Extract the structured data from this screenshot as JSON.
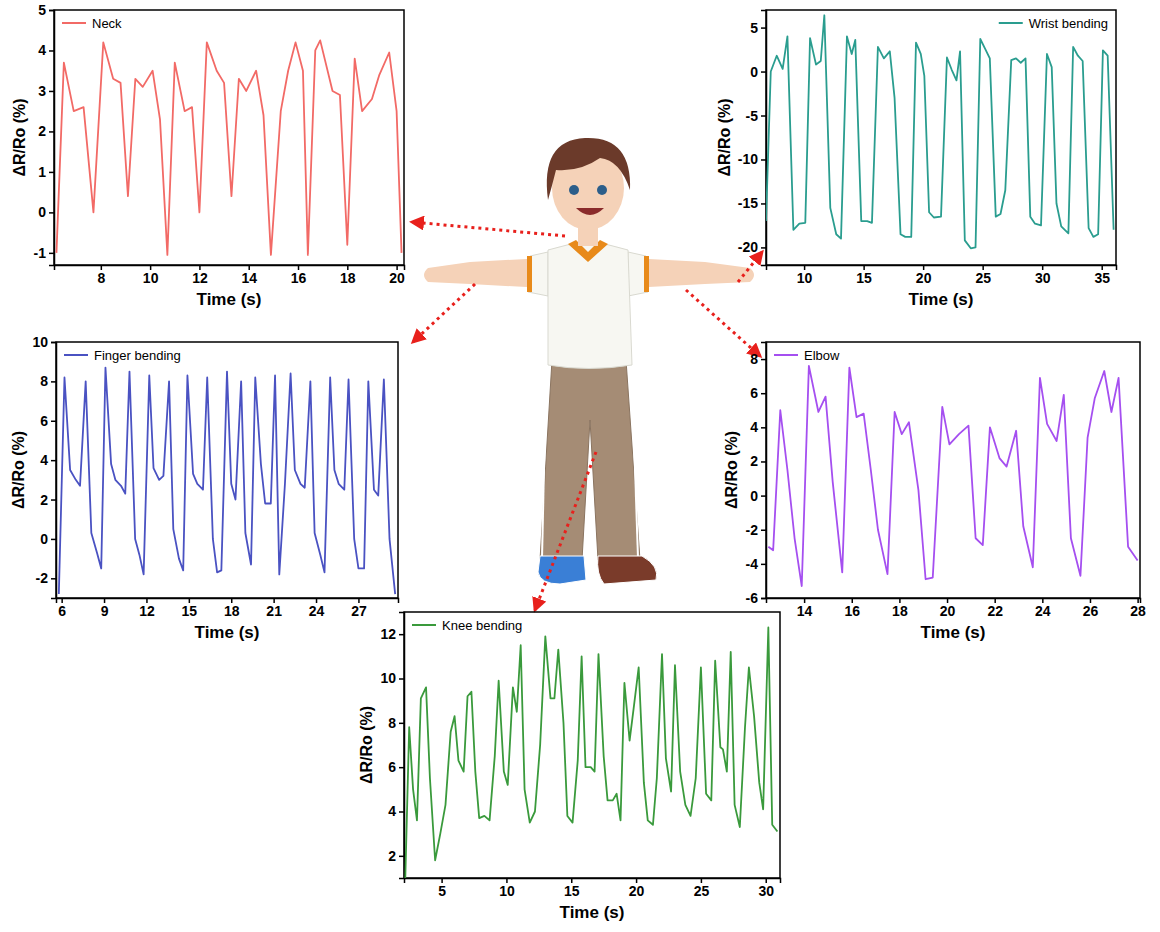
{
  "chart_data": [
    {
      "type": "line",
      "x_label": "Time (s)",
      "y_label": "ΔR/Ro (%)",
      "legend": "upper left",
      "xlim": [
        6.1,
        20.3
      ],
      "xticks": [
        8,
        10,
        12,
        14,
        16,
        18,
        20
      ],
      "ylim": [
        -1.3,
        5
      ],
      "yticks": [
        -1,
        0,
        1,
        2,
        3,
        4,
        5
      ],
      "x": [
        6.2,
        6.5,
        6.9,
        7.3,
        7.7,
        8.1,
        8.5,
        8.8,
        9.1,
        9.4,
        9.7,
        10.1,
        10.4,
        10.7,
        11.0,
        11.4,
        11.7,
        12.0,
        12.3,
        12.7,
        13.0,
        13.3,
        13.6,
        13.9,
        14.3,
        14.6,
        14.9,
        15.3,
        15.6,
        15.9,
        16.2,
        16.4,
        16.7,
        16.9,
        17.4,
        17.7,
        18.0,
        18.3,
        18.6,
        19.0,
        19.3,
        19.7,
        20.0,
        20.2
      ],
      "series": [
        {
          "name": "Neck",
          "color": "#f26a66",
          "values": [
            -1,
            3.7,
            2.5,
            2.6,
            0,
            4.2,
            3.3,
            3.2,
            0.4,
            3.3,
            3.1,
            3.5,
            2.3,
            -1.05,
            3.7,
            2.5,
            2.6,
            0,
            4.2,
            3.5,
            3.2,
            0.4,
            3.3,
            3.0,
            3.5,
            2.4,
            -1.05,
            2.5,
            3.5,
            4.2,
            3.5,
            -1.05,
            4.0,
            4.25,
            3.0,
            2.9,
            -0.8,
            3.8,
            2.5,
            2.8,
            3.4,
            3.95,
            2.5,
            -1
          ]
        }
      ]
    },
    {
      "type": "line",
      "x_label": "Time (s)",
      "y_label": "ΔR/Ro (%)",
      "legend": "upper right",
      "xlim": [
        6.8,
        36.2
      ],
      "xticks": [
        10,
        15,
        20,
        25,
        30,
        35
      ],
      "ylim": [
        -22,
        7
      ],
      "yticks": [
        -20,
        -15,
        -10,
        -5,
        0,
        5
      ],
      "x": [
        6.8,
        7.2,
        7.7,
        8.2,
        8.6,
        9.1,
        9.6,
        10.1,
        10.5,
        11.0,
        11.4,
        11.7,
        12.2,
        12.7,
        13.1,
        13.6,
        14.0,
        14.3,
        14.8,
        15.3,
        15.7,
        16.2,
        16.7,
        17.2,
        17.6,
        18.1,
        18.5,
        19.0,
        19.4,
        19.8,
        20.1,
        20.5,
        20.9,
        21.5,
        22.0,
        22.4,
        22.8,
        23.1,
        23.5,
        24.0,
        24.4,
        24.8,
        25.2,
        25.6,
        26.1,
        26.5,
        26.9,
        27.4,
        27.8,
        28.2,
        28.6,
        29.0,
        29.4,
        29.9,
        30.4,
        30.8,
        31.2,
        31.6,
        32.2,
        32.6,
        33.0,
        33.4,
        33.9,
        34.3,
        34.7,
        35.1,
        35.5,
        36.0
      ],
      "series": [
        {
          "name": "Wrist bending",
          "color": "#2a9d8f",
          "values": [
            -17,
            0,
            1.8,
            0.3,
            4,
            -18,
            -17.3,
            -17.2,
            3.8,
            0.8,
            1.2,
            6.4,
            -15.5,
            -18.5,
            -19,
            4,
            2,
            3.6,
            -17,
            -17,
            -17.2,
            2.8,
            1.5,
            2.3,
            -3,
            -18.5,
            -18.8,
            -18.8,
            3.3,
            2,
            -0.5,
            -16,
            -16.6,
            -16.5,
            1.6,
            0.2,
            -1,
            2.3,
            -19.2,
            -20.1,
            -20,
            3.7,
            2.6,
            1.5,
            -16.5,
            -16.2,
            -13.5,
            1.3,
            1.5,
            1.0,
            1.5,
            -16.5,
            -17.3,
            -17.5,
            2,
            0.5,
            -15,
            -17.6,
            -18.4,
            2.8,
            1.8,
            1.2,
            -17.8,
            -18.8,
            -18.5,
            2.4,
            1.8,
            -18
          ]
        }
      ]
    },
    {
      "type": "line",
      "x_label": "Time (s)",
      "y_label": "ΔR/Ro (%)",
      "legend": "upper left",
      "xlim": [
        5.6,
        29.8
      ],
      "xticks": [
        6,
        9,
        12,
        15,
        18,
        21,
        24,
        27
      ],
      "ylim": [
        -3,
        10
      ],
      "yticks": [
        -2,
        0,
        2,
        4,
        6,
        8,
        10
      ],
      "x": [
        5.8,
        6.2,
        6.6,
        7.0,
        7.3,
        7.7,
        8.1,
        8.5,
        8.8,
        9.1,
        9.5,
        9.8,
        10.2,
        10.5,
        10.8,
        11.2,
        11.5,
        11.8,
        12.2,
        12.5,
        12.9,
        13.2,
        13.6,
        13.9,
        14.3,
        14.6,
        14.9,
        15.3,
        15.6,
        16.0,
        16.3,
        16.7,
        17.0,
        17.3,
        17.7,
        18.0,
        18.3,
        18.7,
        19.0,
        19.4,
        19.7,
        20.1,
        20.4,
        20.8,
        21.1,
        21.4,
        21.8,
        22.2,
        22.5,
        22.9,
        23.2,
        23.6,
        23.9,
        24.3,
        24.6,
        25.0,
        25.3,
        25.6,
        26.0,
        26.3,
        26.7,
        27.0,
        27.4,
        27.7,
        28.1,
        28.4,
        28.8,
        29.2,
        29.6
      ],
      "series": [
        {
          "name": "Finger bending",
          "color": "#4a52c2",
          "values": [
            -2.8,
            8.2,
            3.5,
            3.0,
            2.7,
            8.0,
            0.3,
            -0.7,
            -1.5,
            8.7,
            3.8,
            3.0,
            2.7,
            2.3,
            8.5,
            0,
            -0.8,
            -1.8,
            8.3,
            3.6,
            3.0,
            3.2,
            8.0,
            0.5,
            -1.0,
            -1.6,
            8.3,
            3.3,
            2.8,
            2.5,
            8.2,
            0,
            -1.7,
            -1.6,
            8.5,
            2.8,
            2.0,
            8.0,
            0.3,
            -1.3,
            8.2,
            3.8,
            1.8,
            1.8,
            8.3,
            -1.8,
            2.8,
            8.4,
            3.5,
            2.8,
            2.6,
            8.0,
            0.3,
            -0.8,
            -1.7,
            8.2,
            3.5,
            2.8,
            2.5,
            8.1,
            0,
            -1.5,
            -1.5,
            8.0,
            2.5,
            2.2,
            8.1,
            0,
            -2.8
          ]
        }
      ]
    },
    {
      "type": "line",
      "x_label": "Time (s)",
      "y_label": "ΔR/Ro (%)",
      "legend": "upper left",
      "xlim": [
        12.4,
        28.1
      ],
      "xticks": [
        14,
        16,
        18,
        20,
        22,
        24,
        26,
        28
      ],
      "ylim": [
        -6,
        9
      ],
      "yticks": [
        -6,
        -4,
        -2,
        0,
        2,
        4,
        6,
        8
      ],
      "x": [
        12.5,
        12.7,
        13.0,
        13.3,
        13.6,
        13.9,
        14.2,
        14.6,
        14.9,
        15.2,
        15.6,
        15.9,
        16.2,
        16.5,
        16.8,
        17.1,
        17.5,
        17.8,
        18.1,
        18.4,
        18.8,
        19.1,
        19.4,
        19.8,
        20.1,
        20.5,
        20.9,
        21.2,
        21.5,
        21.8,
        22.2,
        22.5,
        22.9,
        23.2,
        23.6,
        23.9,
        24.2,
        24.6,
        24.9,
        25.2,
        25.6,
        25.9,
        26.2,
        26.6,
        26.9,
        27.2,
        27.6,
        28.0
      ],
      "series": [
        {
          "name": "Elbow",
          "color": "#a54ff0",
          "values": [
            -3,
            -3.2,
            5,
            1.5,
            -2.5,
            -5.3,
            7.6,
            4.9,
            5.8,
            0.8,
            -4.5,
            7.5,
            4.6,
            4.8,
            1.5,
            -2,
            -4.6,
            4.9,
            3.6,
            4.3,
            0.3,
            -4.9,
            -4.8,
            5.2,
            3,
            3.6,
            4.1,
            -2.5,
            -2.9,
            4,
            2.2,
            1.7,
            3.8,
            -1.8,
            -4.2,
            6.9,
            4.2,
            3.2,
            5.9,
            -2.5,
            -4.7,
            3.4,
            5.7,
            7.3,
            4.9,
            6.9,
            -3,
            -3.8
          ]
        }
      ]
    },
    {
      "type": "line",
      "x_label": "Time (s)",
      "y_label": "ΔR/Ro (%)",
      "legend": "upper left",
      "xlim": [
        2.1,
        31.1
      ],
      "xticks": [
        5,
        10,
        15,
        20,
        25,
        30
      ],
      "ylim": [
        1,
        13
      ],
      "yticks": [
        2,
        4,
        6,
        8,
        10,
        12
      ],
      "x": [
        2.2,
        2.5,
        2.8,
        3.1,
        3.4,
        3.8,
        4.1,
        4.5,
        4.9,
        5.3,
        5.7,
        6.0,
        6.3,
        6.7,
        7.0,
        7.3,
        7.6,
        7.9,
        8.3,
        8.7,
        9.1,
        9.4,
        9.8,
        10.1,
        10.5,
        10.8,
        11.1,
        11.4,
        11.8,
        12.2,
        12.6,
        13.0,
        13.4,
        13.7,
        14.0,
        14.4,
        14.7,
        15.1,
        15.5,
        15.8,
        16.1,
        16.5,
        16.8,
        17.1,
        17.5,
        17.8,
        18.2,
        18.5,
        18.8,
        19.1,
        19.5,
        19.8,
        20.2,
        20.6,
        20.9,
        21.3,
        21.6,
        22.0,
        22.3,
        22.7,
        23.0,
        23.4,
        23.8,
        24.2,
        24.6,
        25.0,
        25.4,
        25.8,
        26.1,
        26.5,
        26.7,
        27.0,
        27.3,
        27.6,
        28.0,
        28.4,
        28.7,
        29.1,
        29.5,
        29.8,
        30.2,
        30.5,
        30.9
      ],
      "series": [
        {
          "name": "Knee bending",
          "color": "#3a9a3c",
          "values": [
            1,
            7.8,
            5,
            3.6,
            9.1,
            9.6,
            5.5,
            1.8,
            3,
            4.3,
            7.6,
            8.3,
            6.3,
            5.8,
            9.2,
            9.4,
            5.8,
            3.7,
            3.8,
            3.6,
            6.5,
            9.9,
            5.8,
            5.2,
            9.6,
            8.5,
            11.5,
            5,
            3.5,
            4,
            7,
            11.9,
            9.1,
            9.1,
            11.3,
            8,
            3.8,
            3.5,
            6.3,
            11,
            6,
            6,
            5.8,
            11.1,
            6.5,
            4.5,
            4.5,
            4.8,
            3.6,
            9.8,
            7.2,
            8.6,
            10.5,
            5.3,
            3.6,
            3.4,
            5.5,
            11.1,
            6.4,
            4.9,
            10.6,
            5.8,
            4.3,
            3.8,
            5.5,
            10.5,
            4.8,
            4.5,
            10.8,
            6.9,
            6.8,
            5.8,
            11.2,
            4.3,
            3.3,
            7.8,
            10.5,
            8.3,
            5.3,
            4.1,
            12.3,
            3.4,
            3.1
          ]
        }
      ]
    }
  ]
}
